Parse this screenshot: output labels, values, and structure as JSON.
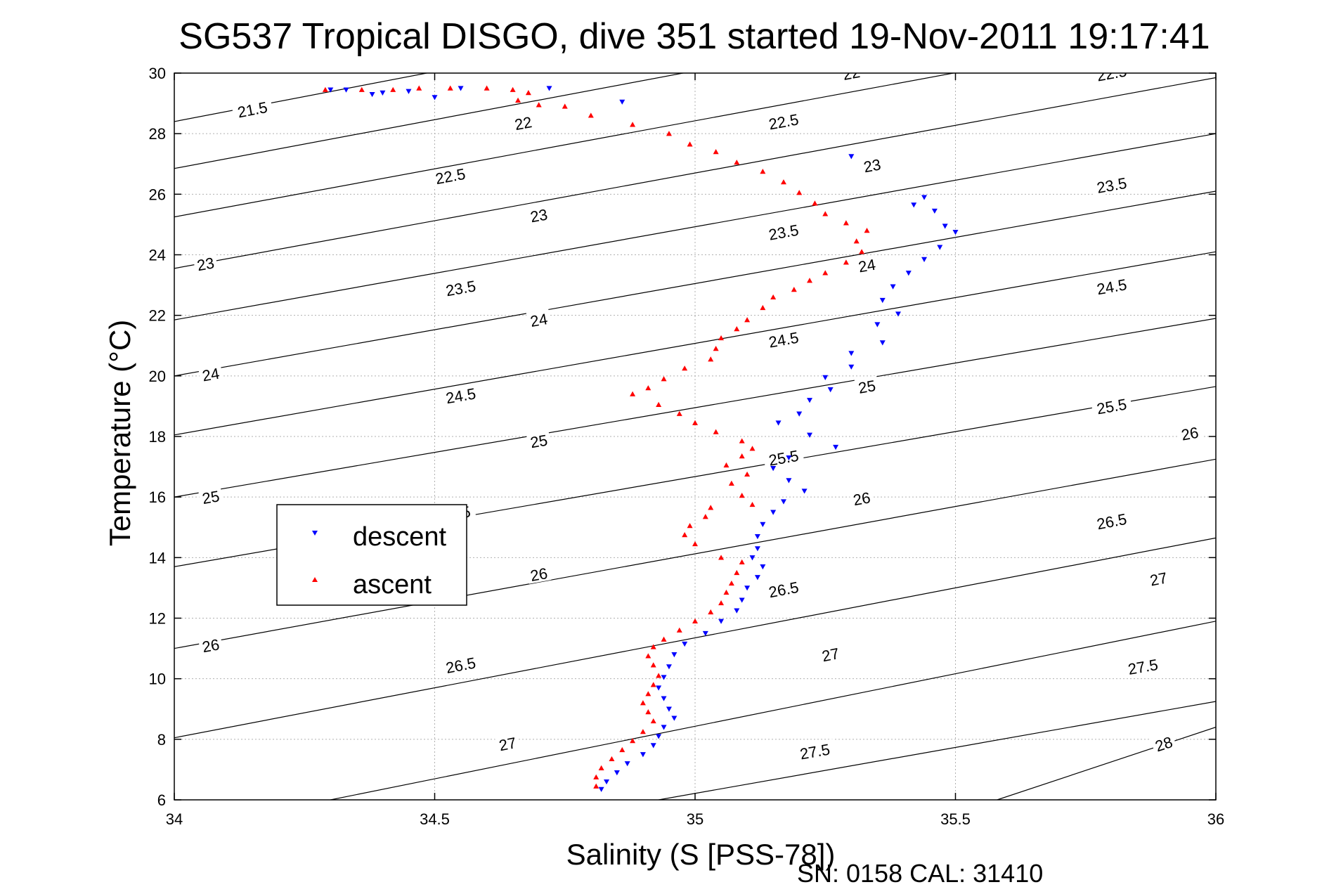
{
  "chart_data": {
    "type": "scatter",
    "title": "SG537 Tropical DISGO, dive 351 started 19-Nov-2011 19:17:41",
    "xlabel": "Salinity (S [PSS-78])",
    "ylabel": "Temperature (°C)",
    "xlim": [
      34,
      36
    ],
    "ylim": [
      6,
      30
    ],
    "x_ticks": [
      "34",
      "34.5",
      "35",
      "35.5",
      "36"
    ],
    "y_ticks": [
      "6",
      "8",
      "10",
      "12",
      "14",
      "16",
      "18",
      "20",
      "22",
      "24",
      "26",
      "28",
      "30"
    ],
    "grid": true,
    "legend": {
      "position": "left-middle",
      "entries": [
        "descent",
        "ascent"
      ]
    },
    "footer": "SN: 0158  CAL: 31410",
    "density_contours": [
      {
        "label": "21.5",
        "points": [
          [
            34.0,
            28.4
          ],
          [
            36.0,
            35.0
          ]
        ],
        "label_pos": [
          34.15,
          28.8
        ]
      },
      {
        "label": "22",
        "points": [
          [
            34.0,
            26.85
          ],
          [
            36.0,
            33.3
          ]
        ],
        "label_pos": [
          34.67,
          28.35
        ],
        "label_pos2": [
          35.3,
          30.0
        ]
      },
      {
        "label": "22.5",
        "points": [
          [
            34.0,
            25.25
          ],
          [
            36.0,
            31.6
          ]
        ],
        "label_pos": [
          34.53,
          26.6
        ],
        "label_pos2": [
          35.17,
          28.4
        ],
        "label_pos3": [
          35.8,
          30.0
        ]
      },
      {
        "label": "23",
        "points": [
          [
            34.0,
            23.55
          ],
          [
            36.0,
            29.85
          ]
        ],
        "label_pos": [
          34.06,
          23.7
        ],
        "label_pos2": [
          34.7,
          25.3
        ],
        "label_pos3": [
          35.34,
          26.95
        ]
      },
      {
        "label": "23.5",
        "points": [
          [
            34.0,
            21.85
          ],
          [
            36.0,
            28.0
          ]
        ],
        "label_pos": [
          34.55,
          22.9
        ],
        "label_pos2": [
          35.17,
          24.75
        ],
        "label_pos3": [
          35.8,
          26.3
        ]
      },
      {
        "label": "24",
        "points": [
          [
            34.0,
            20.0
          ],
          [
            36.0,
            26.1
          ]
        ],
        "label_pos": [
          34.07,
          20.05
        ],
        "label_pos2": [
          34.7,
          21.85
        ],
        "label_pos3": [
          35.33,
          23.65
        ]
      },
      {
        "label": "24.5",
        "points": [
          [
            34.0,
            18.05
          ],
          [
            36.0,
            24.1
          ]
        ],
        "label_pos": [
          34.55,
          19.35
        ],
        "label_pos2": [
          35.17,
          21.2
        ],
        "label_pos3": [
          35.8,
          22.95
        ]
      },
      {
        "label": "25",
        "points": [
          [
            34.0,
            16.0
          ],
          [
            36.0,
            21.9
          ]
        ],
        "label_pos": [
          34.07,
          16.0
        ],
        "label_pos2": [
          34.7,
          17.85
        ],
        "label_pos3": [
          35.33,
          19.65
        ]
      },
      {
        "label": "25.5",
        "points": [
          [
            34.0,
            13.7
          ],
          [
            36.0,
            19.65
          ]
        ],
        "label_pos": [
          34.54,
          15.45
        ],
        "label_pos2": [
          35.17,
          17.3
        ],
        "label_pos3": [
          35.8,
          19.0
        ]
      },
      {
        "label": "26",
        "points": [
          [
            34.0,
            11.0
          ],
          [
            36.0,
            17.25
          ]
        ],
        "label_pos": [
          34.07,
          11.1
        ],
        "label_pos2": [
          34.7,
          13.45
        ],
        "label_pos3": [
          35.32,
          15.95
        ],
        "label_pos4": [
          35.95,
          18.1
        ]
      },
      {
        "label": "26.5",
        "points": [
          [
            34.0,
            8.05
          ],
          [
            36.0,
            14.65
          ]
        ],
        "label_pos": [
          34.55,
          10.45
        ],
        "label_pos2": [
          35.17,
          12.95
        ],
        "label_pos3": [
          35.8,
          15.2
        ]
      },
      {
        "label": "27",
        "points": [
          [
            34.3,
            6.0
          ],
          [
            36.0,
            11.9
          ]
        ],
        "label_pos": [
          34.64,
          7.85
        ],
        "label_pos2": [
          35.26,
          10.8
        ],
        "label_pos3": [
          35.89,
          13.3
        ]
      },
      {
        "label": "27.5",
        "points": [
          [
            34.93,
            6.0
          ],
          [
            36.0,
            9.25
          ]
        ],
        "label_pos": [
          35.23,
          7.6
        ],
        "label_pos2": [
          35.86,
          10.4
        ]
      },
      {
        "label": "28",
        "points": [
          [
            35.58,
            6.0
          ],
          [
            36.0,
            8.4
          ]
        ],
        "label_pos": [
          35.9,
          7.85
        ]
      }
    ],
    "series": [
      {
        "name": "descent",
        "color": "#0000ff",
        "marker": "triangle-down",
        "points": [
          [
            34.3,
            29.45
          ],
          [
            34.33,
            29.45
          ],
          [
            34.38,
            29.3
          ],
          [
            34.4,
            29.35
          ],
          [
            34.45,
            29.4
          ],
          [
            34.5,
            29.2
          ],
          [
            34.55,
            29.5
          ],
          [
            34.72,
            29.5
          ],
          [
            34.86,
            29.05
          ],
          [
            35.3,
            27.25
          ],
          [
            35.42,
            25.65
          ],
          [
            35.44,
            25.9
          ],
          [
            35.46,
            25.45
          ],
          [
            35.48,
            24.95
          ],
          [
            35.5,
            24.75
          ],
          [
            35.47,
            24.25
          ],
          [
            35.44,
            23.85
          ],
          [
            35.41,
            23.4
          ],
          [
            35.38,
            22.95
          ],
          [
            35.36,
            22.5
          ],
          [
            35.39,
            22.05
          ],
          [
            35.35,
            21.7
          ],
          [
            35.36,
            21.1
          ],
          [
            35.3,
            20.75
          ],
          [
            35.3,
            20.3
          ],
          [
            35.25,
            19.95
          ],
          [
            35.26,
            19.55
          ],
          [
            35.22,
            19.2
          ],
          [
            35.2,
            18.75
          ],
          [
            35.16,
            18.45
          ],
          [
            35.22,
            18.05
          ],
          [
            35.27,
            17.65
          ],
          [
            35.18,
            17.3
          ],
          [
            35.15,
            16.95
          ],
          [
            35.18,
            16.55
          ],
          [
            35.21,
            16.2
          ],
          [
            35.17,
            15.85
          ],
          [
            35.15,
            15.5
          ],
          [
            35.13,
            15.1
          ],
          [
            35.12,
            14.7
          ],
          [
            35.12,
            14.3
          ],
          [
            35.11,
            14.0
          ],
          [
            35.13,
            13.7
          ],
          [
            35.12,
            13.35
          ],
          [
            35.1,
            13.0
          ],
          [
            35.09,
            12.6
          ],
          [
            35.08,
            12.25
          ],
          [
            35.05,
            11.9
          ],
          [
            35.02,
            11.5
          ],
          [
            34.98,
            11.15
          ],
          [
            34.96,
            10.8
          ],
          [
            34.95,
            10.4
          ],
          [
            34.94,
            10.05
          ],
          [
            34.93,
            9.7
          ],
          [
            34.94,
            9.35
          ],
          [
            34.95,
            9.0
          ],
          [
            34.96,
            8.7
          ],
          [
            34.94,
            8.4
          ],
          [
            34.93,
            8.1
          ],
          [
            34.92,
            7.8
          ],
          [
            34.9,
            7.5
          ],
          [
            34.87,
            7.2
          ],
          [
            34.85,
            6.9
          ],
          [
            34.83,
            6.6
          ],
          [
            34.82,
            6.35
          ]
        ]
      },
      {
        "name": "ascent",
        "color": "#ff0000",
        "marker": "triangle-up",
        "points": [
          [
            34.29,
            29.45
          ],
          [
            34.36,
            29.45
          ],
          [
            34.42,
            29.45
          ],
          [
            34.47,
            29.5
          ],
          [
            34.53,
            29.5
          ],
          [
            34.6,
            29.5
          ],
          [
            34.65,
            29.45
          ],
          [
            34.68,
            29.35
          ],
          [
            34.66,
            29.1
          ],
          [
            34.7,
            28.95
          ],
          [
            34.75,
            28.9
          ],
          [
            34.8,
            28.6
          ],
          [
            34.88,
            28.3
          ],
          [
            34.95,
            28.0
          ],
          [
            34.99,
            27.65
          ],
          [
            35.04,
            27.4
          ],
          [
            35.08,
            27.05
          ],
          [
            35.13,
            26.75
          ],
          [
            35.17,
            26.4
          ],
          [
            35.2,
            26.05
          ],
          [
            35.23,
            25.7
          ],
          [
            35.25,
            25.35
          ],
          [
            35.29,
            25.05
          ],
          [
            35.33,
            24.8
          ],
          [
            35.31,
            24.45
          ],
          [
            35.32,
            24.1
          ],
          [
            35.29,
            23.75
          ],
          [
            35.25,
            23.4
          ],
          [
            35.22,
            23.15
          ],
          [
            35.19,
            22.85
          ],
          [
            35.15,
            22.6
          ],
          [
            35.13,
            22.25
          ],
          [
            35.1,
            21.85
          ],
          [
            35.08,
            21.55
          ],
          [
            35.05,
            21.25
          ],
          [
            35.04,
            20.9
          ],
          [
            35.03,
            20.55
          ],
          [
            34.98,
            20.25
          ],
          [
            34.94,
            19.9
          ],
          [
            34.91,
            19.6
          ],
          [
            34.88,
            19.4
          ],
          [
            34.93,
            19.05
          ],
          [
            34.97,
            18.75
          ],
          [
            35.0,
            18.45
          ],
          [
            35.04,
            18.15
          ],
          [
            35.09,
            17.85
          ],
          [
            35.11,
            17.6
          ],
          [
            35.09,
            17.35
          ],
          [
            35.06,
            17.05
          ],
          [
            35.1,
            16.75
          ],
          [
            35.07,
            16.45
          ],
          [
            35.09,
            16.05
          ],
          [
            35.11,
            15.75
          ],
          [
            35.03,
            15.65
          ],
          [
            35.02,
            15.35
          ],
          [
            34.99,
            15.05
          ],
          [
            34.98,
            14.75
          ],
          [
            35.0,
            14.45
          ],
          [
            35.05,
            14.0
          ],
          [
            35.09,
            13.85
          ],
          [
            35.08,
            13.5
          ],
          [
            35.07,
            13.15
          ],
          [
            35.06,
            12.85
          ],
          [
            35.05,
            12.5
          ],
          [
            35.03,
            12.2
          ],
          [
            35.0,
            11.9
          ],
          [
            34.97,
            11.6
          ],
          [
            34.94,
            11.3
          ],
          [
            34.92,
            11.05
          ],
          [
            34.91,
            10.75
          ],
          [
            34.92,
            10.45
          ],
          [
            34.93,
            10.1
          ],
          [
            34.92,
            9.8
          ],
          [
            34.91,
            9.5
          ],
          [
            34.9,
            9.2
          ],
          [
            34.91,
            8.9
          ],
          [
            34.92,
            8.6
          ],
          [
            34.9,
            8.25
          ],
          [
            34.88,
            7.95
          ],
          [
            34.86,
            7.65
          ],
          [
            34.84,
            7.35
          ],
          [
            34.82,
            7.05
          ],
          [
            34.81,
            6.75
          ],
          [
            34.81,
            6.45
          ]
        ]
      }
    ]
  }
}
